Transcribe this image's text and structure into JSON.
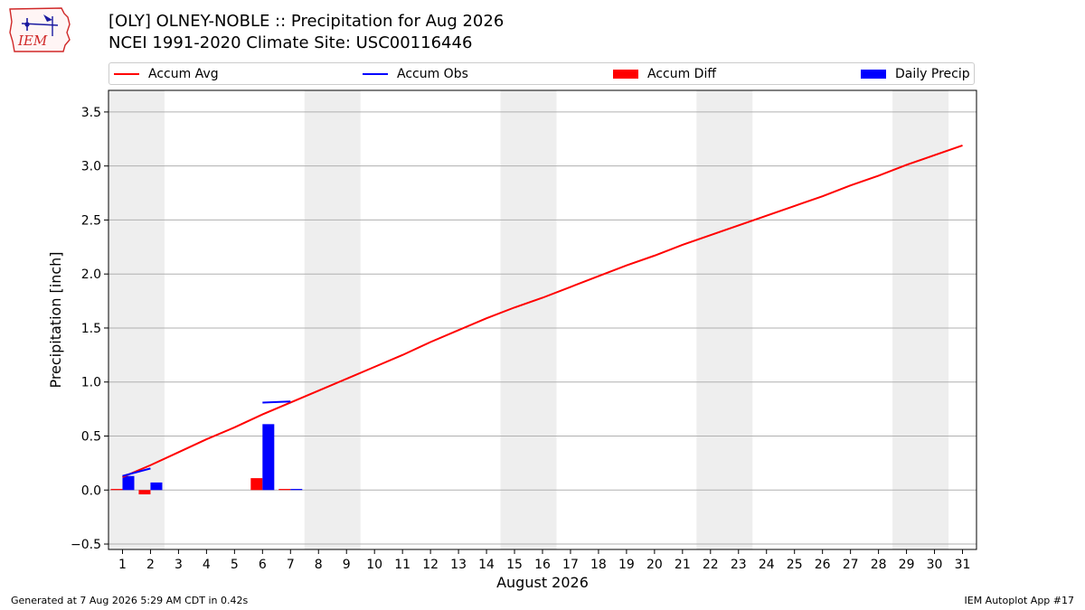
{
  "header": {
    "title_line1": "[OLY] OLNEY-NOBLE :: Precipitation for Aug 2026",
    "title_line2": "NCEI 1991-2020 Climate Site: USC00116446",
    "logo_text": "IEM"
  },
  "footer": {
    "generated": "Generated at 7 Aug 2026 5:29 AM CDT in 0.42s",
    "app": "IEM Autoplot App #17"
  },
  "colors": {
    "accum_avg": "#ff0000",
    "accum_obs": "#0000ff",
    "accum_diff": "#ff0000",
    "daily_precip": "#0000ff",
    "weekend_band": "#eeeeee",
    "grid": "#b0b0b0"
  },
  "chart_data": {
    "type": "bar",
    "xlabel": "August 2026",
    "ylabel": "Precipitation [inch]",
    "xlim": [
      0.5,
      31.5
    ],
    "ylim": [
      -0.55,
      3.7
    ],
    "x_ticks": [
      1,
      2,
      3,
      4,
      5,
      6,
      7,
      8,
      9,
      10,
      11,
      12,
      13,
      14,
      15,
      16,
      17,
      18,
      19,
      20,
      21,
      22,
      23,
      24,
      25,
      26,
      27,
      28,
      29,
      30,
      31
    ],
    "y_ticks": [
      -0.5,
      0.0,
      0.5,
      1.0,
      1.5,
      2.0,
      2.5,
      3.0,
      3.5
    ],
    "y_tick_labels": [
      "−0.5",
      "0.0",
      "0.5",
      "1.0",
      "1.5",
      "2.0",
      "2.5",
      "3.0",
      "3.5"
    ],
    "grid": "horizontal",
    "legend_position": "top",
    "weekend_bands": [
      [
        0.5,
        2.5
      ],
      [
        7.5,
        9.5
      ],
      [
        14.5,
        16.5
      ],
      [
        21.5,
        23.5
      ],
      [
        28.5,
        30.5
      ]
    ],
    "series": [
      {
        "name": "Accum Avg",
        "kind": "line",
        "x": [
          1,
          2,
          3,
          4,
          5,
          6,
          7,
          8,
          9,
          10,
          11,
          12,
          13,
          14,
          15,
          16,
          17,
          18,
          19,
          20,
          21,
          22,
          23,
          24,
          25,
          26,
          27,
          28,
          29,
          30,
          31
        ],
        "values": [
          0.12,
          0.23,
          0.35,
          0.47,
          0.58,
          0.7,
          0.81,
          0.92,
          1.03,
          1.14,
          1.25,
          1.37,
          1.48,
          1.59,
          1.69,
          1.78,
          1.88,
          1.98,
          2.08,
          2.17,
          2.27,
          2.36,
          2.45,
          2.54,
          2.63,
          2.72,
          2.82,
          2.91,
          3.01,
          3.1,
          3.19
        ]
      },
      {
        "name": "Accum Obs",
        "kind": "line",
        "x": [
          1,
          2,
          3,
          4,
          5,
          6,
          7
        ],
        "values": [
          0.13,
          0.2,
          null,
          null,
          null,
          0.81,
          0.82
        ]
      },
      {
        "name": "Accum Diff",
        "kind": "bar",
        "x": [
          1,
          2,
          3,
          4,
          5,
          6,
          7
        ],
        "values": [
          0.01,
          -0.04,
          0.0,
          0.0,
          0.0,
          0.11,
          0.01
        ]
      },
      {
        "name": "Daily Precip",
        "kind": "bar",
        "x": [
          1,
          2,
          3,
          4,
          5,
          6,
          7
        ],
        "values": [
          0.13,
          0.07,
          0.0,
          0.0,
          0.0,
          0.61,
          0.01
        ]
      }
    ]
  }
}
